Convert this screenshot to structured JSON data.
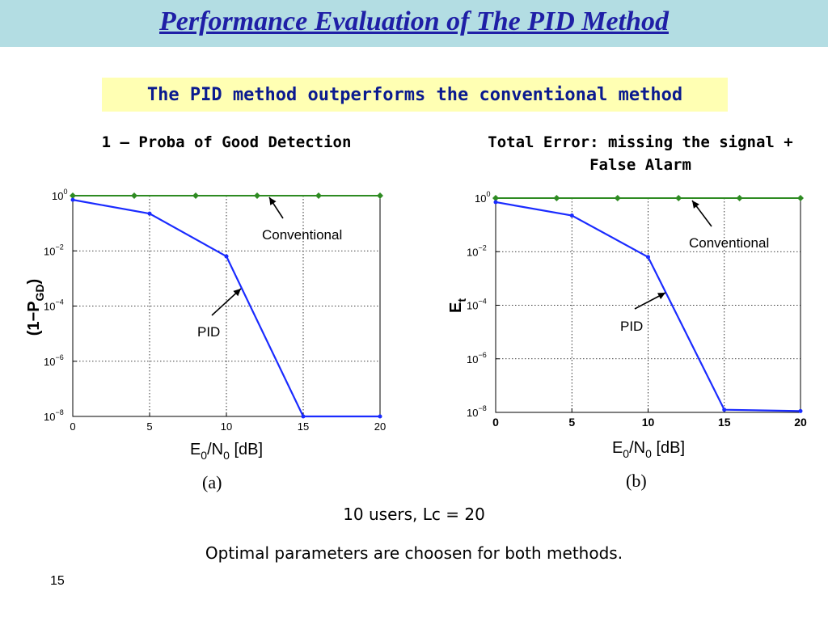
{
  "slide": {
    "title": "Performance Evaluation of The PID Method",
    "highlight": "The PID method outperforms the conventional method",
    "footer_line1": "10 users, Lc = 20",
    "footer_line2": "Optimal parameters are choosen for both methods.",
    "page_number": "15"
  },
  "colors": {
    "title_bar": "#b3dde3",
    "title_text": "#1f1fa6",
    "highlight_bg": "#ffffb3",
    "conventional": "#2e8b22",
    "pid": "#1a2bff"
  },
  "chart_data": [
    {
      "type": "line",
      "panel_title": "1 – Proba of Good Detection",
      "figure_label": "(a)",
      "ylabel_main": "(1−P",
      "ylabel_sub": "GD",
      "ylabel_end": ")",
      "xlabel_main": "E",
      "xlabel_sub": "0",
      "xlabel_mid": "/N",
      "xlabel_sub2": "0",
      "xlabel_end": " [dB]",
      "x_ticks": [
        "0",
        "5",
        "10",
        "15",
        "20"
      ],
      "y_ticks": [
        {
          "base": "10",
          "exp": "0"
        },
        {
          "base": "10",
          "exp": "−2"
        },
        {
          "base": "10",
          "exp": "−4"
        },
        {
          "base": "10",
          "exp": "−6"
        },
        {
          "base": "10",
          "exp": "−8"
        }
      ],
      "xlim": [
        0,
        20
      ],
      "ylim_log10": [
        -8,
        0
      ],
      "grid": true,
      "series": [
        {
          "name": "Conventional",
          "x": [
            0,
            4,
            8,
            12,
            16,
            20
          ],
          "y_log10": [
            0,
            0,
            0,
            0,
            0,
            0
          ]
        },
        {
          "name": "PID",
          "x": [
            0,
            5,
            10,
            15,
            20
          ],
          "y_log10": [
            -0.15,
            -0.65,
            -2.2,
            -8,
            -8
          ]
        }
      ]
    },
    {
      "type": "line",
      "panel_title": "Total Error: missing the signal + False Alarm",
      "figure_label": "(b)",
      "ylabel_main": "E",
      "ylabel_sub": "t",
      "ylabel_end": "",
      "xlabel_main": "E",
      "xlabel_sub": "0",
      "xlabel_mid": "/N",
      "xlabel_sub2": "0",
      "xlabel_end": " [dB]",
      "x_ticks": [
        "0",
        "5",
        "10",
        "15",
        "20"
      ],
      "y_ticks": [
        {
          "base": "10",
          "exp": "0"
        },
        {
          "base": "10",
          "exp": "−2"
        },
        {
          "base": "10",
          "exp": "−4"
        },
        {
          "base": "10",
          "exp": "−6"
        },
        {
          "base": "10",
          "exp": "−8"
        }
      ],
      "xlim": [
        0,
        20
      ],
      "ylim_log10": [
        -8,
        0
      ],
      "grid": true,
      "series": [
        {
          "name": "Conventional",
          "x": [
            0,
            4,
            8,
            12,
            16,
            20
          ],
          "y_log10": [
            0,
            0,
            0,
            0,
            0,
            0
          ]
        },
        {
          "name": "PID",
          "x": [
            0,
            5,
            10,
            15,
            20
          ],
          "y_log10": [
            -0.15,
            -0.65,
            -2.2,
            -7.9,
            -7.95
          ]
        }
      ]
    }
  ]
}
